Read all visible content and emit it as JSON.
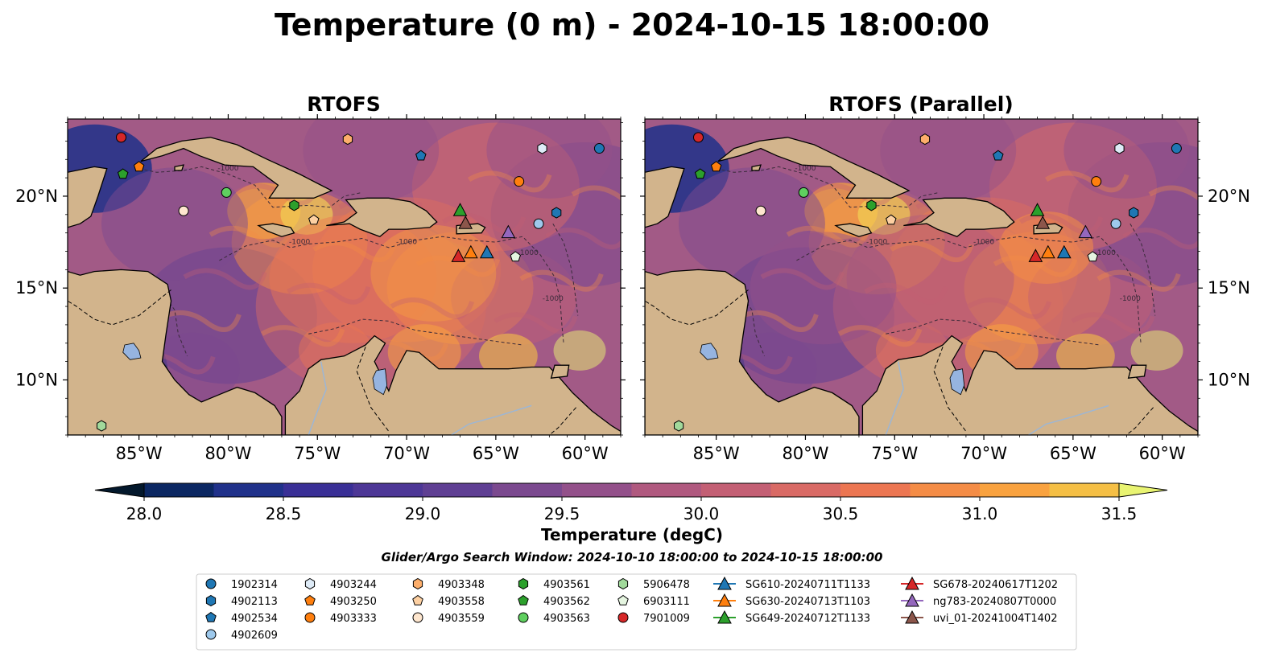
{
  "figure": {
    "suptitle": "Temperature (0 m) - 2024-10-15 18:00:00",
    "search_window": "Glider/Argo Search Window: 2024-10-10 18:00:00 to 2024-10-15 18:00:00"
  },
  "chart_data": {
    "type": "heatmap",
    "panels": [
      {
        "title": "RTOFS",
        "variant": "primary"
      },
      {
        "title": "RTOFS (Parallel)",
        "variant": "parallel"
      }
    ],
    "lon_range": [
      -89,
      -58
    ],
    "lat_range": [
      7,
      24.2
    ],
    "x_ticks": [
      -85,
      -80,
      -75,
      -70,
      -65,
      -60
    ],
    "x_tick_labels": [
      "85°W",
      "80°W",
      "75°W",
      "70°W",
      "65°W",
      "60°W"
    ],
    "y_ticks": [
      10,
      15,
      20
    ],
    "y_tick_labels": [
      "10°N",
      "15°N",
      "20°N"
    ],
    "grid": false,
    "colorbar": {
      "label": "Temperature (degC)",
      "min": 28.0,
      "max": 31.5,
      "step": 0.25,
      "extend": "both",
      "ticks": [
        28.0,
        28.5,
        29.0,
        29.5,
        30.0,
        30.5,
        31.0,
        31.5
      ],
      "tick_labels": [
        "28.0",
        "28.5",
        "29.0",
        "29.5",
        "30.0",
        "30.5",
        "31.0",
        "31.5"
      ],
      "colors": [
        "#03182c",
        "#0b2762",
        "#20318a",
        "#392f96",
        "#4d3796",
        "#5f3f93",
        "#7b498f",
        "#93508a",
        "#b0597f",
        "#c35f74",
        "#d96a65",
        "#ec7652",
        "#f48c46",
        "#f9a23f",
        "#f5bf45",
        "#f3da55",
        "#e9f472"
      ]
    },
    "contour_labels": [
      "-1000"
    ],
    "land_color": "#d2b48c",
    "lake_color": "#96b4e0",
    "legend": {
      "location": "bottom-center",
      "columns": 7,
      "entries": [
        {
          "label": "1902314",
          "marker": "circle",
          "color": "#1f77b4",
          "lon": -59.2,
          "lat": 22.6
        },
        {
          "label": "4902113",
          "marker": "hexagon",
          "color": "#1f77b4",
          "lon": -61.6,
          "lat": 19.1
        },
        {
          "label": "4902534",
          "marker": "pentagon",
          "color": "#1f77b4",
          "lon": -69.2,
          "lat": 22.2
        },
        {
          "label": "4902609",
          "marker": "circle",
          "color": "#9ec9ec",
          "lon": -62.6,
          "lat": 18.5
        },
        {
          "label": "4903244",
          "marker": "hexagon",
          "color": "#deebf7",
          "lon": -62.4,
          "lat": 22.6
        },
        {
          "label": "4903250",
          "marker": "pentagon",
          "color": "#ff7f0e",
          "lon": -85.0,
          "lat": 21.6
        },
        {
          "label": "4903333",
          "marker": "circle",
          "color": "#ff7f0e",
          "lon": -63.7,
          "lat": 20.8
        },
        {
          "label": "4903348",
          "marker": "hexagon",
          "color": "#fdae6b",
          "lon": -73.3,
          "lat": 23.1
        },
        {
          "label": "4903558",
          "marker": "pentagon",
          "color": "#fdd0a2",
          "lon": -75.2,
          "lat": 18.7
        },
        {
          "label": "4903559",
          "marker": "circle",
          "color": "#fee6ce",
          "lon": -82.5,
          "lat": 19.2
        },
        {
          "label": "4903561",
          "marker": "hexagon",
          "color": "#2ca02c",
          "lon": -76.3,
          "lat": 19.5
        },
        {
          "label": "4903562",
          "marker": "pentagon",
          "color": "#2ca02c",
          "lon": -85.9,
          "lat": 21.2
        },
        {
          "label": "4903563",
          "marker": "circle",
          "color": "#5fcf5f",
          "lon": -80.1,
          "lat": 20.2
        },
        {
          "label": "5906478",
          "marker": "hexagon",
          "color": "#a1d99b",
          "lon": -87.1,
          "lat": 7.5
        },
        {
          "label": "6903111",
          "marker": "pentagon",
          "color": "#e5f5e0",
          "lon": -63.9,
          "lat": 16.7
        },
        {
          "label": "7901009",
          "marker": "circle",
          "color": "#d62728",
          "lon": -86.0,
          "lat": 23.2
        },
        {
          "label": "SG610-20240711T1133",
          "marker": "triangle",
          "color": "#1f77b4",
          "line": true,
          "lon": -65.5,
          "lat": 16.9
        },
        {
          "label": "SG630-20240713T1103",
          "marker": "triangle",
          "color": "#ff7f0e",
          "line": true,
          "lon": -66.4,
          "lat": 16.9
        },
        {
          "label": "SG649-20240712T1133",
          "marker": "triangle",
          "color": "#2ca02c",
          "line": true,
          "lon": -67.0,
          "lat": 19.2
        },
        {
          "label": "SG678-20240617T1202",
          "marker": "triangle",
          "color": "#d62728",
          "line": true,
          "lon": -67.1,
          "lat": 16.7
        },
        {
          "label": "ng783-20240807T0000",
          "marker": "triangle",
          "color": "#9467bd",
          "line": true,
          "lon": -64.3,
          "lat": 18.0
        },
        {
          "label": "uvi_01-20241004T1402",
          "marker": "triangle",
          "color": "#8c564b",
          "line": true,
          "lon": -66.7,
          "lat": 18.5
        }
      ]
    }
  }
}
